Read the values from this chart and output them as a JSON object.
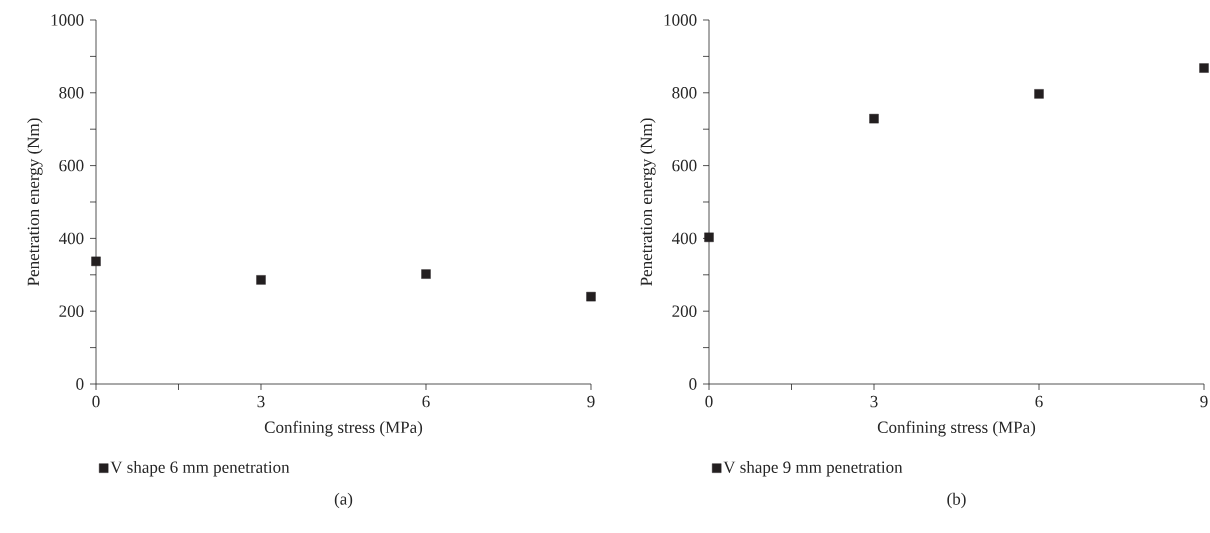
{
  "chart_data": [
    {
      "type": "scatter",
      "x": [
        0,
        3,
        6,
        9
      ],
      "xlabel": "Confining stress (MPa)",
      "ylabel": "Penetration energy (Nm)",
      "xlim": [
        0,
        9
      ],
      "xticks": [
        0,
        {
          "value": 1.5,
          "label": null
        },
        3,
        6,
        9
      ],
      "ylim": [
        0,
        1000
      ],
      "yticks": [
        0,
        {
          "value": 100,
          "label": null
        },
        200,
        {
          "value": 300,
          "label": null
        },
        400,
        {
          "value": 500,
          "label": null
        },
        600,
        {
          "value": 700,
          "label": null
        },
        800,
        {
          "value": 900,
          "label": null
        },
        1000
      ],
      "series": [
        {
          "name": "V shape 6 mm penetration",
          "color": "#231f20",
          "values": [
            337,
            286,
            302,
            240
          ]
        }
      ],
      "marker": "square",
      "legend": "bottom",
      "annotations": [
        "(a)"
      ]
    },
    {
      "type": "scatter",
      "x": [
        0,
        3,
        6,
        9
      ],
      "xlabel": "Confining stress (MPa)",
      "ylabel": "Penetration energy (Nm)",
      "xlim": [
        0,
        9
      ],
      "xticks": [
        0,
        {
          "value": 1.5,
          "label": null
        },
        3,
        6,
        9
      ],
      "ylim": [
        0,
        1000
      ],
      "yticks": [
        0,
        {
          "value": 100,
          "label": null
        },
        200,
        {
          "value": 300,
          "label": null
        },
        400,
        {
          "value": 500,
          "label": null
        },
        600,
        {
          "value": 700,
          "label": null
        },
        800,
        {
          "value": 900,
          "label": null
        },
        1000
      ],
      "series": [
        {
          "name": "V shape 9 mm penetration",
          "color": "#231f20",
          "values": [
            403,
            729,
            797,
            868
          ]
        }
      ],
      "marker": "square",
      "legend": "bottom",
      "annotations": [
        "(b)"
      ]
    }
  ]
}
